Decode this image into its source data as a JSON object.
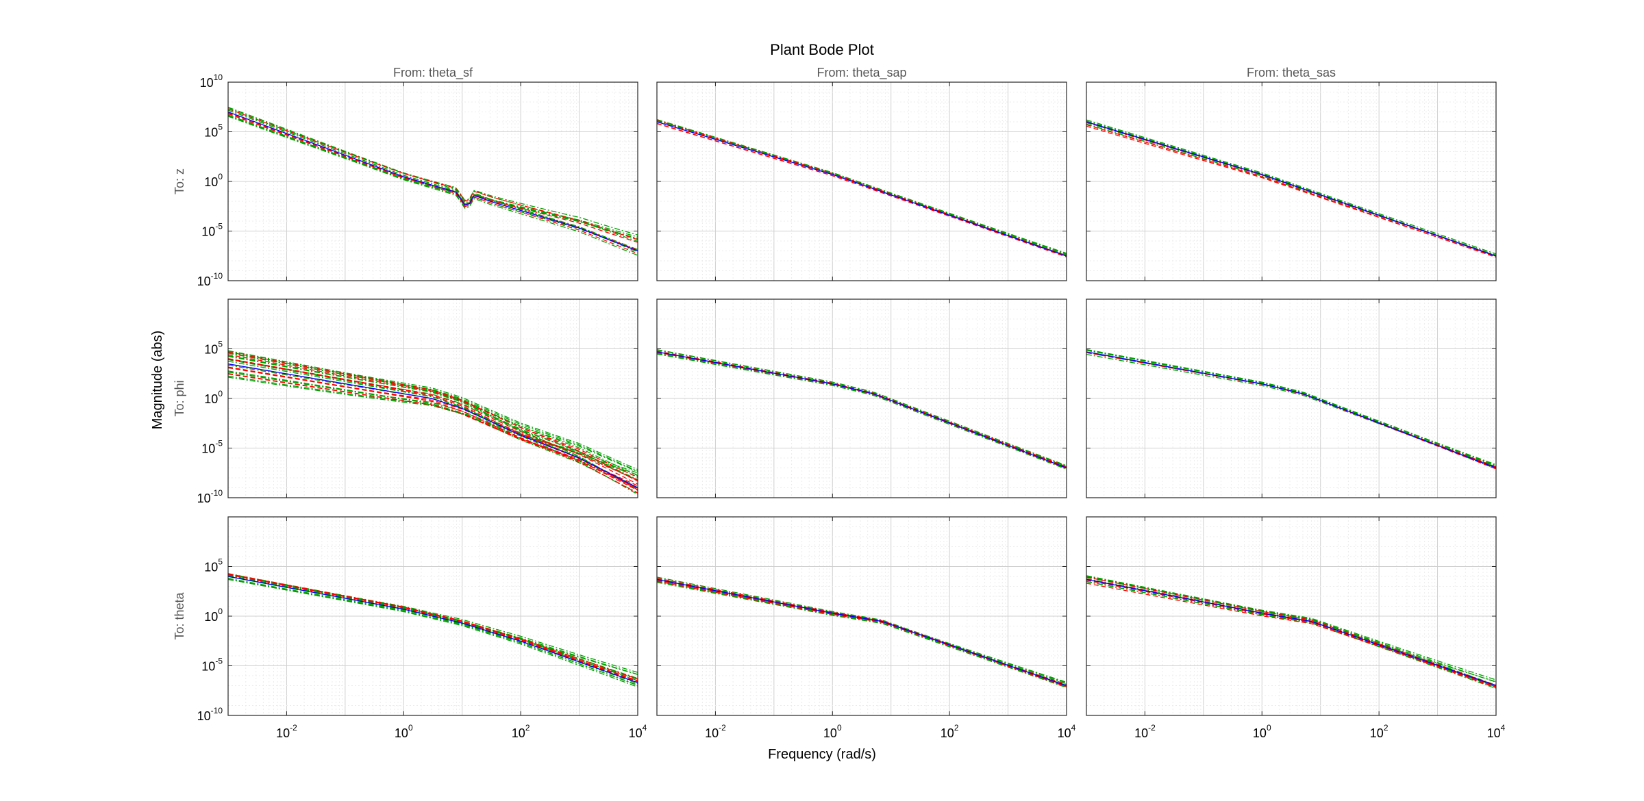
{
  "chart_data": {
    "type": "line",
    "title": "Plant Bode Plot",
    "xlabel": "Frequency  (rad/s)",
    "ylabel": "Magnitude (abs)",
    "x_scale": "log",
    "y_scale": "log",
    "xlim": [
      0.001,
      10000
    ],
    "ylim": [
      1e-10,
      10000000000.0
    ],
    "x_ticks": [
      {
        "base": "10",
        "exp": "-2",
        "value": 0.01
      },
      {
        "base": "10",
        "exp": "0",
        "value": 1
      },
      {
        "base": "10",
        "exp": "2",
        "value": 100
      },
      {
        "base": "10",
        "exp": "4",
        "value": 10000
      }
    ],
    "y_ticks": [
      {
        "base": "10",
        "exp": "10",
        "value": 10000000000.0
      },
      {
        "base": "10",
        "exp": "5",
        "value": 100000.0
      },
      {
        "base": "10",
        "exp": "0",
        "value": 1
      },
      {
        "base": "10",
        "exp": "-5",
        "value": 1e-05
      },
      {
        "base": "10",
        "exp": "-10",
        "value": 1e-10
      }
    ],
    "grid": true,
    "columns": [
      "From: theta_sf",
      "From: theta_sap",
      "From: theta_sas"
    ],
    "rows": [
      "To: z",
      "To: phi",
      "To: theta"
    ],
    "colors": {
      "nominal": "#0000ff",
      "red": "#ff0000",
      "green": "#00a000",
      "axis": "#262626",
      "grid": "#d9d9d9"
    },
    "panels": [
      [
        {
          "nominal": [
            [
              0.001,
              10000000.0
            ],
            [
              1,
              3
            ],
            [
              8,
              0.08
            ],
            [
              12,
              0.002
            ],
            [
              16,
              0.04
            ],
            [
              30,
              0.01
            ],
            [
              1000,
              2e-05
            ],
            [
              10000,
              1e-07
            ]
          ],
          "red": {
            "spread": 0.4,
            "curves": 4,
            "tip": 1.5
          },
          "green": {
            "spread": 0.5,
            "curves": 10,
            "tip": 2.2
          }
        },
        {
          "nominal": [
            [
              0.001,
              1000000.0
            ],
            [
              1,
              5
            ],
            [
              10000,
              3e-08
            ]
          ],
          "red": {
            "spread": 0.2,
            "curves": 3,
            "tip": 0.2
          },
          "green": {
            "spread": 0.25,
            "curves": 6,
            "tip": 0.3
          }
        },
        {
          "nominal": [
            [
              0.001,
              1000000.0
            ],
            [
              1,
              5
            ],
            [
              10000,
              3e-08
            ]
          ],
          "red": {
            "spread": 0.5,
            "curves": 4,
            "tip": 0.2
          },
          "green": {
            "spread": 0.25,
            "curves": 6,
            "tip": 0.3
          }
        }
      ],
      [
        {
          "nominal": [
            [
              0.001,
              3000
            ],
            [
              3,
              1
            ],
            [
              10,
              0.1
            ],
            [
              100,
              0.0002
            ],
            [
              1000,
              1e-06
            ],
            [
              10000,
              1e-09
            ]
          ],
          "red": {
            "spread": 1.4,
            "curves": 10,
            "tip": 1.5
          },
          "green": {
            "spread": 1.5,
            "curves": 16,
            "tip": 3.0
          }
        },
        {
          "nominal": [
            [
              0.001,
              50000
            ],
            [
              1,
              30
            ],
            [
              5,
              3
            ],
            [
              10000,
              1e-07
            ]
          ],
          "red": {
            "spread": 0.2,
            "curves": 3,
            "tip": 0.2
          },
          "green": {
            "spread": 0.25,
            "curves": 6,
            "tip": 0.3
          }
        },
        {
          "nominal": [
            [
              0.001,
              50000
            ],
            [
              1,
              30
            ],
            [
              5,
              3
            ],
            [
              10000,
              1e-07
            ]
          ],
          "red": {
            "spread": 0.2,
            "curves": 4,
            "tip": 0.3
          },
          "green": {
            "spread": 0.3,
            "curves": 8,
            "tip": 0.5
          }
        }
      ],
      [
        {
          "nominal": [
            [
              0.001,
              10000.0
            ],
            [
              1,
              5
            ],
            [
              10,
              0.2
            ],
            [
              100,
              0.003
            ],
            [
              10000,
              2e-07
            ]
          ],
          "red": {
            "spread": 0.3,
            "curves": 4,
            "tip": 0.4
          },
          "green": {
            "spread": 0.3,
            "curves": 12,
            "tip": 1.4
          }
        },
        {
          "nominal": [
            [
              0.001,
              5000
            ],
            [
              1,
              2
            ],
            [
              7,
              0.3
            ],
            [
              10000,
              1e-07
            ]
          ],
          "red": {
            "spread": 0.2,
            "curves": 4,
            "tip": 0.4
          },
          "green": {
            "spread": 0.3,
            "curves": 8,
            "tip": 0.5
          }
        },
        {
          "nominal": [
            [
              0.001,
              5000
            ],
            [
              1,
              2
            ],
            [
              7,
              0.3
            ],
            [
              10000,
              1e-07
            ]
          ],
          "red": {
            "spread": 0.4,
            "curves": 5,
            "tip": 0.7
          },
          "green": {
            "spread": 0.4,
            "curves": 10,
            "tip": 0.9
          }
        }
      ]
    ]
  }
}
